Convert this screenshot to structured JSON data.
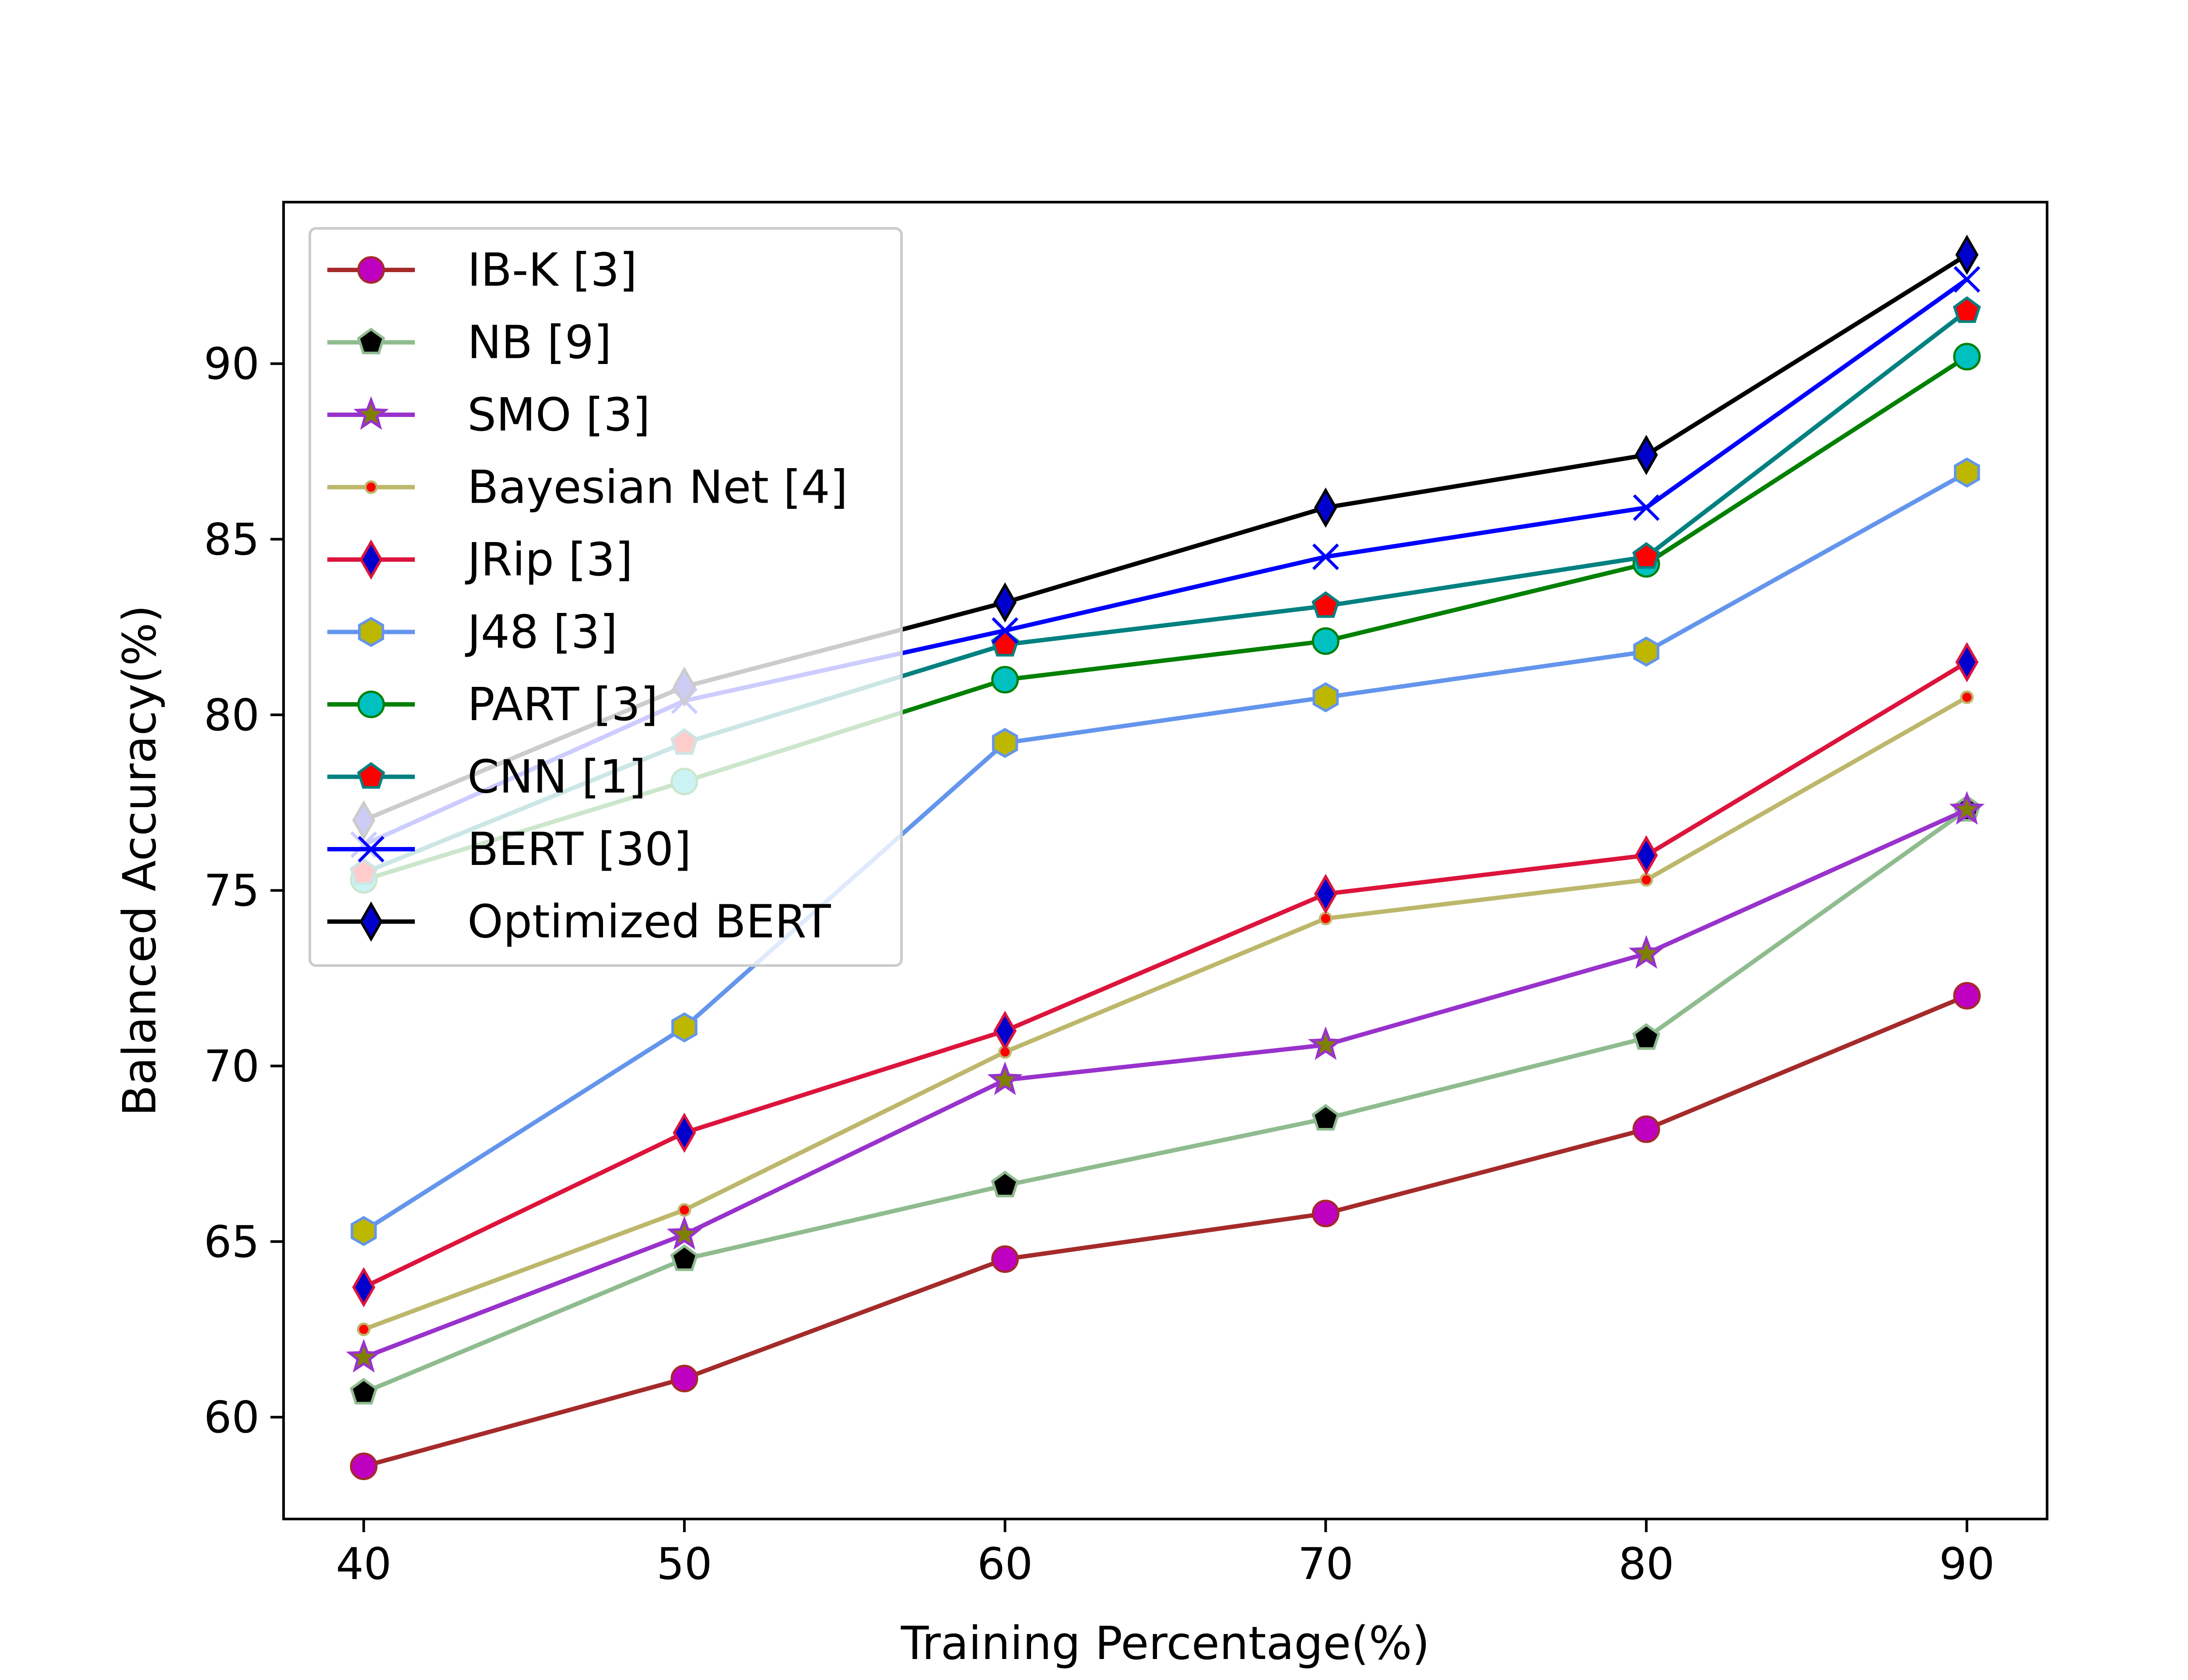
{
  "chart_data": {
    "type": "line",
    "title": "",
    "xlabel": "Training Percentage(%)",
    "ylabel": "Balanced Accuracy(%)",
    "x": [
      40,
      50,
      60,
      70,
      80,
      90
    ],
    "xlim": [
      37.5,
      92.5
    ],
    "ylim": [
      57.1,
      94.6
    ],
    "xticks": [
      40,
      50,
      60,
      70,
      80,
      90
    ],
    "yticks": [
      60,
      65,
      70,
      75,
      80,
      85,
      90
    ],
    "grid": false,
    "legend_position": "top-left",
    "series": [
      {
        "name": "IB-K [3]",
        "values": [
          58.6,
          61.1,
          64.5,
          65.8,
          68.2,
          72.0
        ],
        "color": "#a52a2a",
        "marker": "circle",
        "marker_fill": "#c000c0",
        "marker_edge": "#a52a2a"
      },
      {
        "name": "NB [9]",
        "values": [
          60.7,
          64.5,
          66.6,
          68.5,
          70.8,
          77.3
        ],
        "color": "#8fbc8f",
        "marker": "pentagon",
        "marker_fill": "#000000",
        "marker_edge": "#8fbc8f"
      },
      {
        "name": "SMO [3]",
        "values": [
          61.7,
          65.2,
          69.6,
          70.6,
          73.2,
          77.3
        ],
        "color": "#9932cc",
        "marker": "star",
        "marker_fill": "#808000",
        "marker_edge": "#9932cc"
      },
      {
        "name": "Bayesian Net [4]",
        "values": [
          62.5,
          65.9,
          70.4,
          74.2,
          75.3,
          80.5
        ],
        "color": "#bdb76b",
        "marker": "dot",
        "marker_fill": "#ff0000",
        "marker_edge": "#bdb76b"
      },
      {
        "name": "JRip [3]",
        "values": [
          63.7,
          68.1,
          71.0,
          74.9,
          76.0,
          81.5
        ],
        "color": "#dc143c",
        "marker": "thin-diamond",
        "marker_fill": "#0000cd",
        "marker_edge": "#dc143c"
      },
      {
        "name": "J48 [3]",
        "values": [
          65.3,
          71.1,
          79.2,
          80.5,
          81.8,
          86.9
        ],
        "color": "#6495ed",
        "marker": "hexagon",
        "marker_fill": "#bdb700",
        "marker_edge": "#6495ed"
      },
      {
        "name": "PART [3]",
        "values": [
          75.3,
          78.1,
          81.0,
          82.1,
          84.3,
          90.2
        ],
        "color": "#008000",
        "marker": "circle",
        "marker_fill": "#00c0c0",
        "marker_edge": "#008000"
      },
      {
        "name": "CNN [1]",
        "values": [
          75.5,
          79.2,
          82.0,
          83.1,
          84.5,
          91.5
        ],
        "color": "#008080",
        "marker": "pentagon",
        "marker_fill": "#ff0000",
        "marker_edge": "#008080"
      },
      {
        "name": "BERT [30]",
        "values": [
          76.3,
          80.4,
          82.4,
          84.5,
          85.9,
          92.4
        ],
        "color": "#0000ff",
        "marker": "x",
        "marker_fill": "#0000ff",
        "marker_edge": "#0000ff"
      },
      {
        "name": "Optimized BERT",
        "values": [
          77.0,
          80.8,
          83.2,
          85.9,
          87.4,
          93.1
        ],
        "color": "#000000",
        "marker": "thin-diamond",
        "marker_fill": "#0000cd",
        "marker_edge": "#000000"
      }
    ]
  }
}
